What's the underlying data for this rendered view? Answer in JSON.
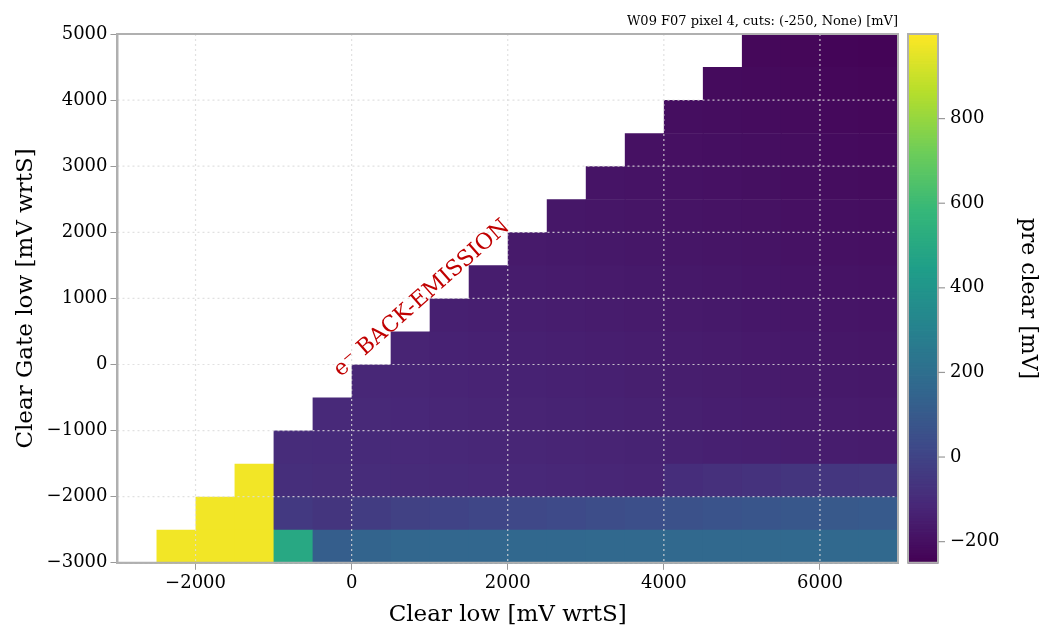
{
  "chart_data": {
    "type": "heatmap",
    "title": "W09 F07 pixel 4, cuts: (-250, None) [mV]",
    "xlabel": "Clear low [mV wrtS]",
    "ylabel": "Clear Gate low [mV wrtS]",
    "clabel": "pre clear [mV]",
    "cells": [
      [
        null,
        null,
        null,
        null,
        null,
        null,
        null,
        null,
        null,
        null,
        null,
        null,
        null,
        null,
        null,
        null,
        -226,
        -230,
        -234,
        -238
      ],
      [
        null,
        null,
        null,
        null,
        null,
        null,
        null,
        null,
        null,
        null,
        null,
        null,
        null,
        null,
        null,
        -215,
        -219,
        -223,
        -227,
        -231
      ],
      [
        null,
        null,
        null,
        null,
        null,
        null,
        null,
        null,
        null,
        null,
        null,
        null,
        null,
        null,
        -204,
        -208,
        -212,
        -216,
        -220,
        -224
      ],
      [
        null,
        null,
        null,
        null,
        null,
        null,
        null,
        null,
        null,
        null,
        null,
        null,
        null,
        -193,
        -197,
        -201,
        -205,
        -209,
        -213,
        -217
      ],
      [
        null,
        null,
        null,
        null,
        null,
        null,
        null,
        null,
        null,
        null,
        null,
        null,
        -182,
        -186,
        -190,
        -194,
        -198,
        -202,
        -206,
        -210
      ],
      [
        null,
        null,
        null,
        null,
        null,
        null,
        null,
        null,
        null,
        null,
        null,
        -171,
        -175,
        -179,
        -183,
        -187,
        -191,
        -195,
        -199,
        -203
      ],
      [
        null,
        null,
        null,
        null,
        null,
        null,
        null,
        null,
        null,
        null,
        -160,
        -164,
        -168,
        -172,
        -176,
        -180,
        -184,
        -188,
        -192,
        -196
      ],
      [
        null,
        null,
        null,
        null,
        null,
        null,
        null,
        null,
        null,
        -149,
        -153,
        -157,
        -161,
        -165,
        -169,
        -173,
        -177,
        -181,
        -185,
        -189
      ],
      [
        null,
        null,
        null,
        null,
        null,
        null,
        null,
        null,
        -138,
        -142,
        -146,
        -150,
        -154,
        -158,
        -162,
        -166,
        -170,
        -174,
        -178,
        -182
      ],
      [
        null,
        null,
        null,
        null,
        null,
        null,
        null,
        -127,
        -131,
        -135,
        -139,
        -143,
        -147,
        -151,
        -155,
        -159,
        -163,
        -167,
        -171,
        -175
      ],
      [
        null,
        null,
        null,
        null,
        null,
        null,
        -116,
        -120,
        -124,
        -128,
        -132,
        -136,
        -140,
        -144,
        -148,
        -152,
        -156,
        -160,
        -164,
        -168
      ],
      [
        null,
        null,
        null,
        null,
        null,
        -105,
        -109,
        -113,
        -117,
        -121,
        -125,
        -129,
        -133,
        -137,
        -141,
        -145,
        -149,
        -153,
        -157,
        -161
      ],
      [
        null,
        null,
        null,
        null,
        -94,
        -98,
        -102,
        -106,
        -110,
        -114,
        -118,
        -122,
        -126,
        -130,
        -134,
        -138,
        -142,
        -146,
        -150,
        -154
      ],
      [
        null,
        null,
        null,
        980,
        -87,
        -91,
        -95,
        -99,
        -103,
        -107,
        -111,
        -115,
        -119,
        -123,
        -90,
        -80,
        -70,
        -60,
        -55,
        -50
      ],
      [
        null,
        null,
        980,
        980,
        -40,
        -60,
        -30,
        -10,
        0,
        10,
        20,
        30,
        40,
        50,
        60,
        70,
        80,
        90,
        95,
        100
      ],
      [
        null,
        980,
        980,
        980,
        500,
        120,
        150,
        160,
        160,
        160,
        165,
        165,
        170,
        170,
        170,
        170,
        170,
        170,
        170,
        170
      ]
    ],
    "xlim": [
      -3000,
      7000
    ],
    "xticks": [
      -2000,
      0,
      2000,
      4000,
      6000
    ],
    "ylim": [
      -3000,
      5000
    ],
    "yticks": [
      -3000,
      -2000,
      -1000,
      0,
      1000,
      2000,
      3000,
      4000,
      5000
    ],
    "clim": [
      -250,
      1000
    ],
    "cticks": [
      -200,
      0,
      200,
      400,
      600,
      800
    ],
    "grid": true,
    "legend": false,
    "annotations": [
      "e⁻ BACK-EMISSION"
    ]
  }
}
